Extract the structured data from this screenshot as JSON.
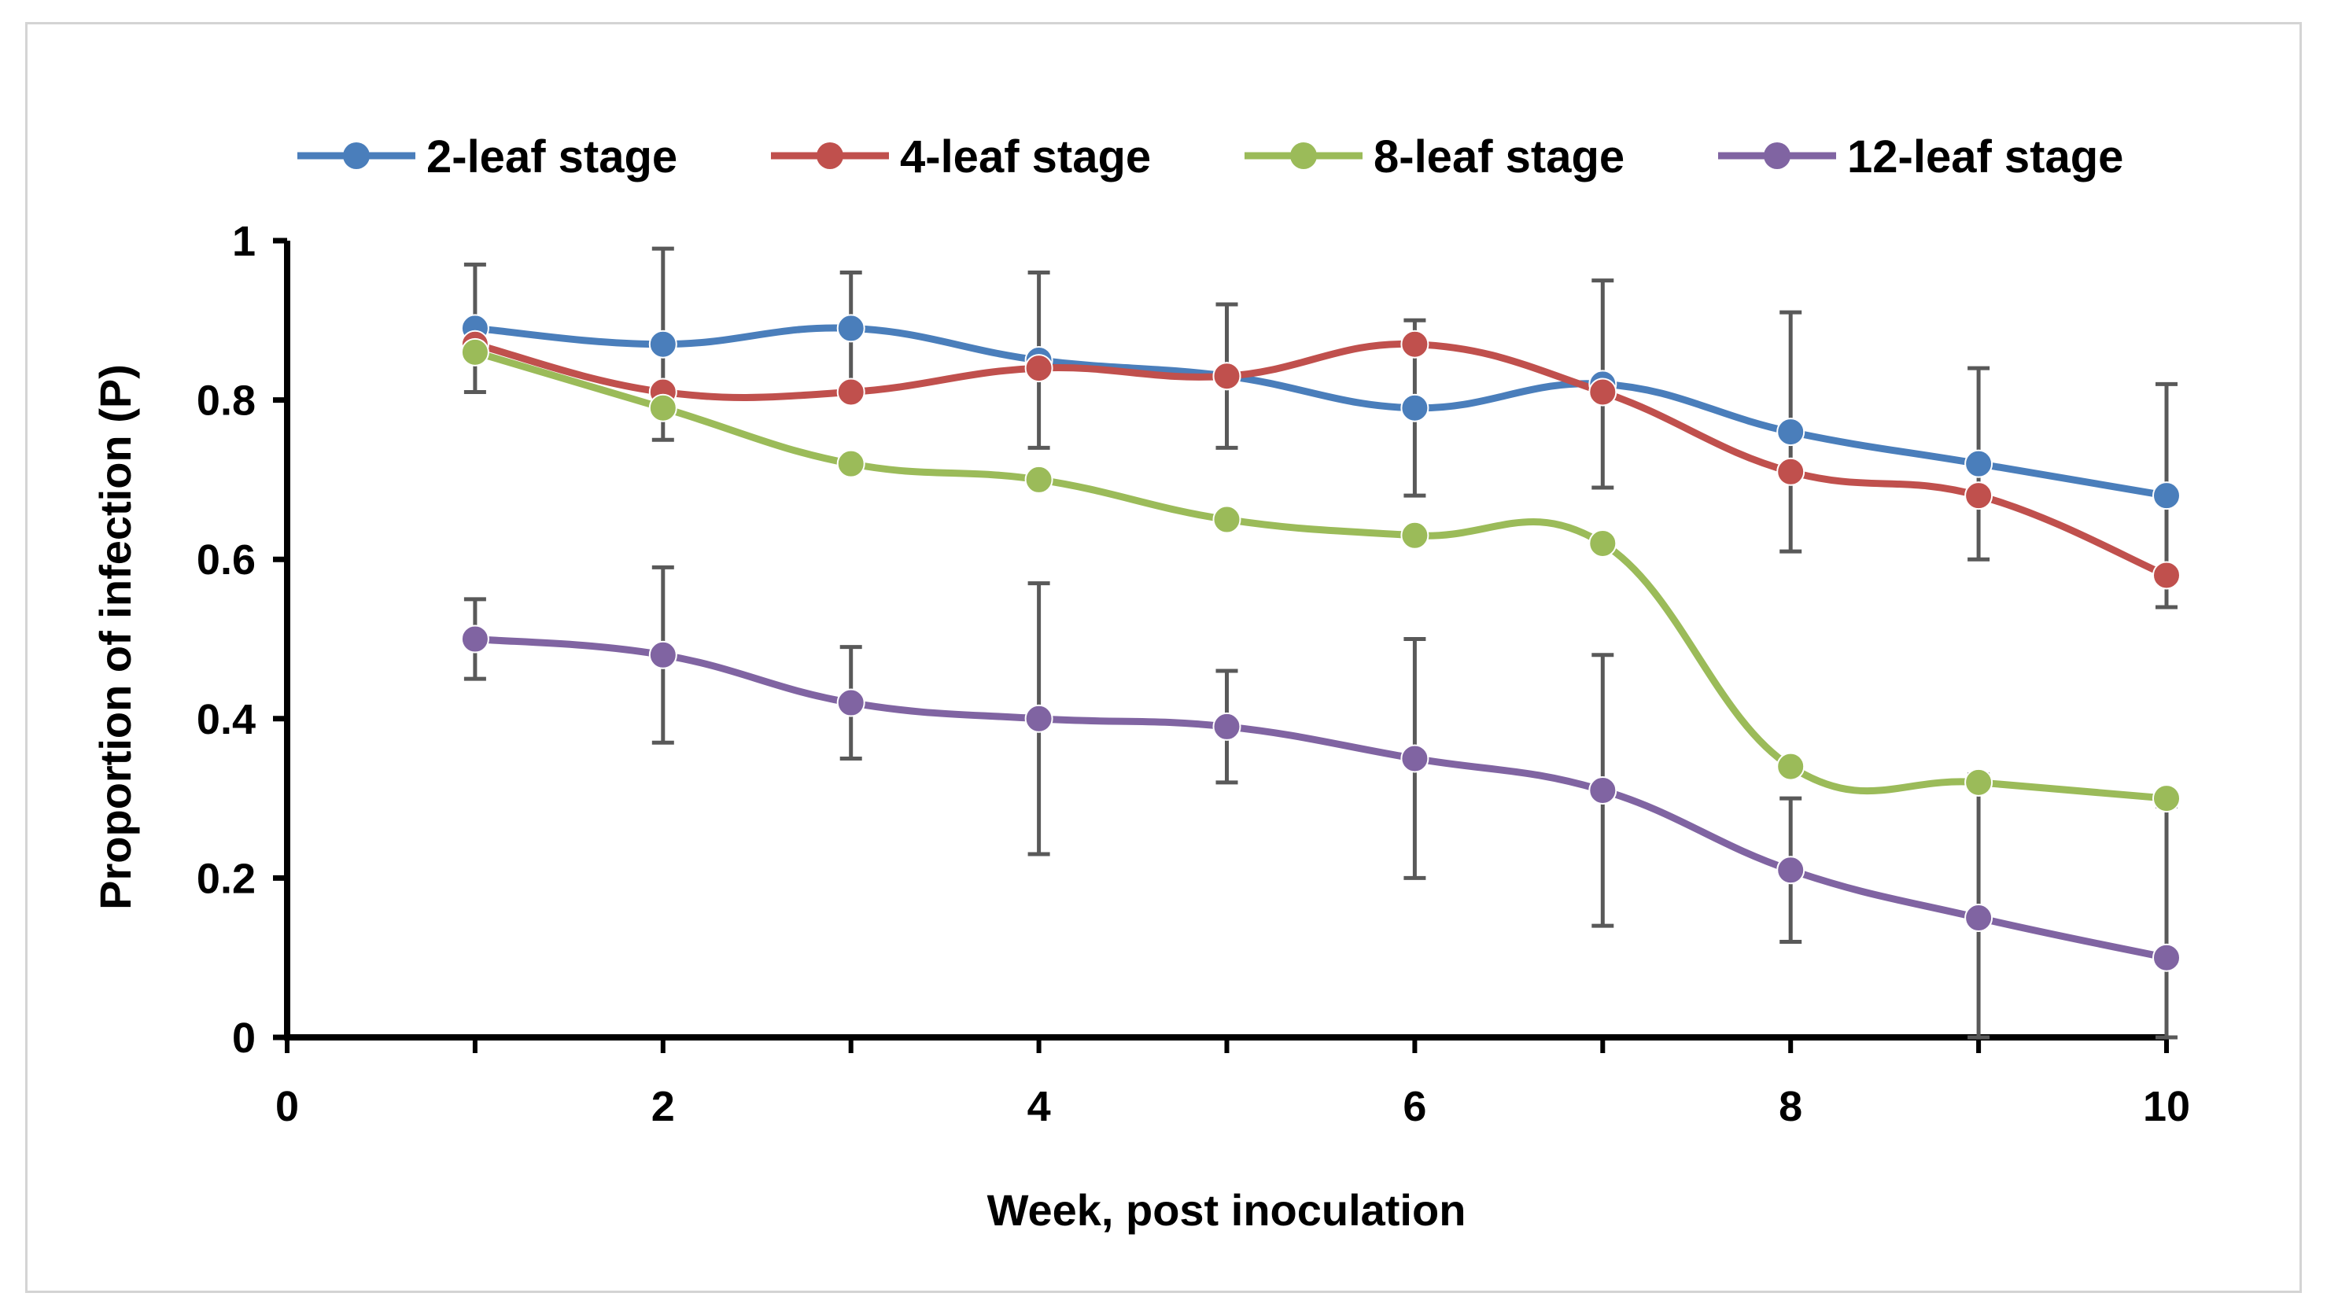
{
  "chart_data": {
    "type": "line",
    "title": "",
    "xlabel": "Week, post inoculation",
    "ylabel": "Proportion of infection (P)",
    "xlim": [
      0,
      10
    ],
    "ylim": [
      0,
      1
    ],
    "xticks": [
      0,
      2,
      4,
      6,
      8,
      10
    ],
    "yticks": [
      0,
      0.2,
      0.4,
      0.6,
      0.8,
      1
    ],
    "xtick_labels": [
      "0",
      "2",
      "4",
      "6",
      "8",
      "10"
    ],
    "ytick_labels": [
      "0",
      "0.2",
      "0.4",
      "0.6",
      "0.8",
      "1"
    ],
    "grid": false,
    "legend_position": "top",
    "x": [
      1,
      2,
      3,
      4,
      5,
      6,
      7,
      8,
      9,
      10
    ],
    "series": [
      {
        "name": "2-leaf stage",
        "color": "#4a7ebb",
        "values": [
          0.89,
          0.87,
          0.89,
          0.85,
          0.83,
          0.79,
          0.82,
          0.76,
          0.72,
          0.68
        ],
        "error_low": [
          null,
          null,
          null,
          null,
          null,
          null,
          null,
          null,
          null,
          null
        ],
        "error_high": [
          null,
          null,
          null,
          null,
          null,
          null,
          null,
          null,
          null,
          null
        ]
      },
      {
        "name": "4-leaf stage",
        "color": "#c0504d",
        "values": [
          0.87,
          0.81,
          0.81,
          0.84,
          0.83,
          0.87,
          0.81,
          0.71,
          0.68,
          0.58
        ],
        "error_low": [
          0.81,
          null,
          null,
          0.74,
          0.74,
          0.68,
          0.69,
          0.61,
          0.6,
          0.54
        ],
        "error_high": [
          0.97,
          0.99,
          0.96,
          0.96,
          0.92,
          0.9,
          0.95,
          0.91,
          0.84,
          0.82
        ]
      },
      {
        "name": "8-leaf stage",
        "color": "#9bbb59",
        "values": [
          0.86,
          0.79,
          0.72,
          0.7,
          0.65,
          0.63,
          0.62,
          0.34,
          0.32,
          0.3
        ],
        "error_low": [
          null,
          0.75,
          null,
          null,
          null,
          null,
          null,
          null,
          null,
          null
        ],
        "error_high": [
          null,
          null,
          null,
          null,
          null,
          null,
          null,
          null,
          null,
          null
        ]
      },
      {
        "name": "12-leaf stage",
        "color": "#8064a2",
        "values": [
          0.5,
          0.48,
          0.42,
          0.4,
          0.39,
          0.35,
          0.31,
          0.21,
          0.15,
          0.1
        ],
        "error_low": [
          0.45,
          0.37,
          0.35,
          0.23,
          0.32,
          0.2,
          0.14,
          0.12,
          0.0,
          0.0
        ],
        "error_high": [
          0.55,
          0.59,
          0.49,
          0.57,
          0.46,
          0.5,
          0.48,
          0.3,
          0.33,
          0.29
        ]
      }
    ]
  }
}
